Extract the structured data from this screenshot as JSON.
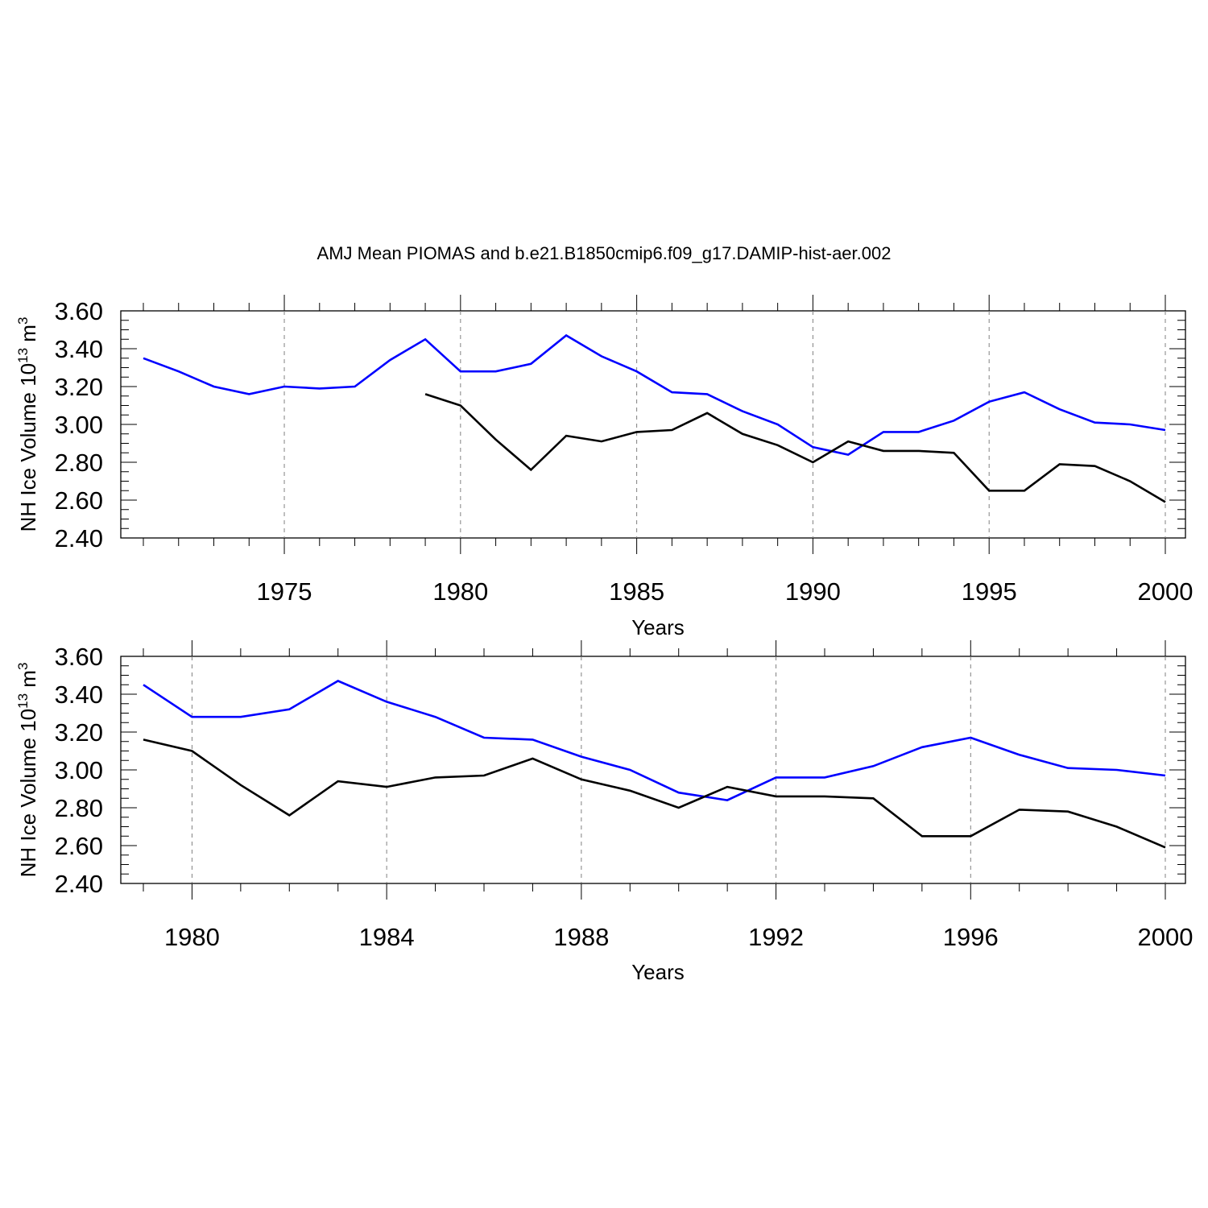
{
  "title": "AMJ Mean PIOMAS and b.e21.B1850cmip6.f09_g17.DAMIP-hist-aer.002",
  "colors": {
    "model": "#0000ff",
    "piomas": "#000000",
    "grid": "#808080",
    "axis": "#000000"
  },
  "chart_data": [
    {
      "type": "line",
      "xlabel": "Years",
      "ylabel": {
        "base": "NH Ice Volume 10",
        "exponent": "13",
        "unit": " m",
        "unit_exponent": "3"
      },
      "xlim": [
        1971,
        2000
      ],
      "ylim": [
        2.4,
        3.6
      ],
      "xticks": [
        1975,
        1980,
        1985,
        1990,
        1995,
        2000
      ],
      "yticks": [
        2.4,
        2.6,
        2.8,
        3.0,
        3.2,
        3.4,
        3.6
      ],
      "ytick_labels": [
        "2.40",
        "2.60",
        "2.80",
        "3.00",
        "3.20",
        "3.40",
        "3.60"
      ],
      "grid": "vertical dashed at major x ticks",
      "series": [
        {
          "color": "#0000ff",
          "x": [
            1971,
            1972,
            1973,
            1974,
            1975,
            1976,
            1977,
            1978,
            1979,
            1980,
            1981,
            1982,
            1983,
            1984,
            1985,
            1986,
            1987,
            1988,
            1989,
            1990,
            1991,
            1992,
            1993,
            1994,
            1995,
            1996,
            1997,
            1998,
            1999,
            2000
          ],
          "y": [
            3.35,
            3.28,
            3.2,
            3.16,
            3.2,
            3.19,
            3.2,
            3.34,
            3.45,
            3.28,
            3.28,
            3.32,
            3.47,
            3.36,
            3.28,
            3.17,
            3.16,
            3.07,
            3.0,
            2.88,
            2.84,
            2.96,
            2.96,
            3.02,
            3.12,
            3.17,
            3.08,
            3.01,
            3.0,
            2.97
          ]
        },
        {
          "color": "#000000",
          "x": [
            1979,
            1980,
            1981,
            1982,
            1983,
            1984,
            1985,
            1986,
            1987,
            1988,
            1989,
            1990,
            1991,
            1992,
            1993,
            1994,
            1995,
            1996,
            1997,
            1998,
            1999,
            2000
          ],
          "y": [
            3.16,
            3.1,
            2.92,
            2.76,
            2.94,
            2.91,
            2.96,
            2.97,
            3.06,
            2.95,
            2.89,
            2.8,
            2.91,
            2.86,
            2.86,
            2.85,
            2.65,
            2.65,
            2.79,
            2.78,
            2.7,
            2.59
          ]
        }
      ]
    },
    {
      "type": "line",
      "xlabel": "Years",
      "ylabel": {
        "base": "NH Ice Volume 10",
        "exponent": "13",
        "unit": " m",
        "unit_exponent": "3"
      },
      "xlim": [
        1979,
        2000
      ],
      "ylim": [
        2.4,
        3.6
      ],
      "xticks": [
        1980,
        1984,
        1988,
        1992,
        1996,
        2000
      ],
      "yticks": [
        2.4,
        2.6,
        2.8,
        3.0,
        3.2,
        3.4,
        3.6
      ],
      "ytick_labels": [
        "2.40",
        "2.60",
        "2.80",
        "3.00",
        "3.20",
        "3.40",
        "3.60"
      ],
      "grid": "vertical dashed at major x ticks",
      "series": [
        {
          "color": "#0000ff",
          "x": [
            1979,
            1980,
            1981,
            1982,
            1983,
            1984,
            1985,
            1986,
            1987,
            1988,
            1989,
            1990,
            1991,
            1992,
            1993,
            1994,
            1995,
            1996,
            1997,
            1998,
            1999,
            2000
          ],
          "y": [
            3.45,
            3.28,
            3.28,
            3.32,
            3.47,
            3.36,
            3.28,
            3.17,
            3.16,
            3.07,
            3.0,
            2.88,
            2.84,
            2.96,
            2.96,
            3.02,
            3.12,
            3.17,
            3.08,
            3.01,
            3.0,
            2.97
          ]
        },
        {
          "color": "#000000",
          "x": [
            1979,
            1980,
            1981,
            1982,
            1983,
            1984,
            1985,
            1986,
            1987,
            1988,
            1989,
            1990,
            1991,
            1992,
            1993,
            1994,
            1995,
            1996,
            1997,
            1998,
            1999,
            2000
          ],
          "y": [
            3.16,
            3.1,
            2.92,
            2.76,
            2.94,
            2.91,
            2.96,
            2.97,
            3.06,
            2.95,
            2.89,
            2.8,
            2.91,
            2.86,
            2.86,
            2.85,
            2.65,
            2.65,
            2.79,
            2.78,
            2.7,
            2.59
          ]
        }
      ]
    }
  ]
}
